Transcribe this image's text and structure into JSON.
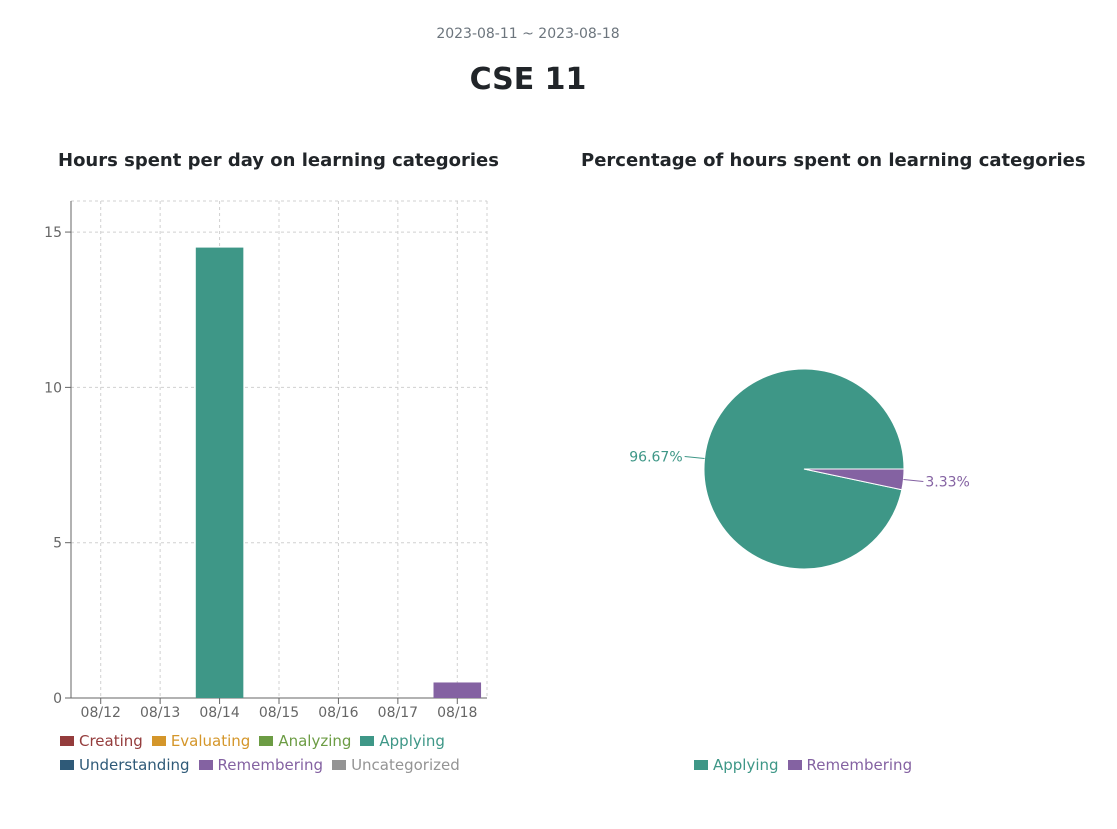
{
  "header": {
    "date_range": "2023-08-11 ~ 2023-08-18",
    "course": "CSE 11"
  },
  "colors": {
    "Creating": "#943c3c",
    "Evaluating": "#d4962a",
    "Analyzing": "#6c9c44",
    "Applying": "#3e9787",
    "Understanding": "#2f5a78",
    "Remembering": "#8462a2",
    "Uncategorized": "#949494"
  },
  "chart_data": [
    {
      "type": "bar",
      "title": "Hours spent per day on learning categories",
      "categories": [
        "08/12",
        "08/13",
        "08/14",
        "08/15",
        "08/16",
        "08/17",
        "08/18"
      ],
      "series": [
        {
          "name": "Creating",
          "values": [
            0,
            0,
            0,
            0,
            0,
            0,
            0
          ]
        },
        {
          "name": "Evaluating",
          "values": [
            0,
            0,
            0,
            0,
            0,
            0,
            0
          ]
        },
        {
          "name": "Analyzing",
          "values": [
            0,
            0,
            0,
            0,
            0,
            0,
            0
          ]
        },
        {
          "name": "Applying",
          "values": [
            0,
            0,
            14.5,
            0,
            0,
            0,
            0
          ]
        },
        {
          "name": "Understanding",
          "values": [
            0,
            0,
            0,
            0,
            0,
            0,
            0
          ]
        },
        {
          "name": "Remembering",
          "values": [
            0,
            0,
            0,
            0,
            0,
            0,
            0.5
          ]
        },
        {
          "name": "Uncategorized",
          "values": [
            0,
            0,
            0,
            0,
            0,
            0,
            0
          ]
        }
      ],
      "yticks": [
        0,
        5,
        10,
        15
      ],
      "ylim": [
        0,
        16
      ],
      "grid": true,
      "legend_position": "bottom"
    },
    {
      "type": "pie",
      "title": "Percentage of hours spent on learning categories",
      "slices": [
        {
          "name": "Applying",
          "value": 96.67,
          "label": "96.67%"
        },
        {
          "name": "Remembering",
          "value": 3.33,
          "label": "3.33%"
        }
      ],
      "legend_position": "bottom"
    }
  ]
}
